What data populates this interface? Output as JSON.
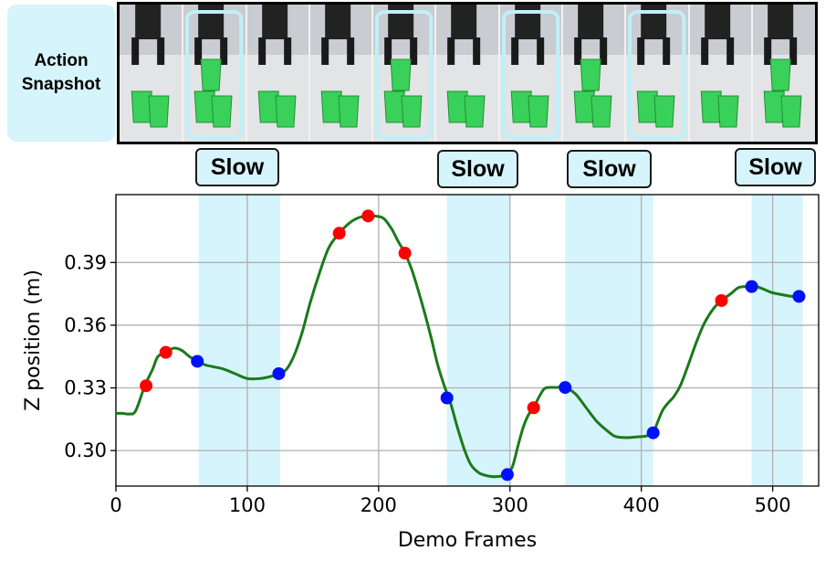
{
  "snapshot_panel": {
    "label_line1": "Action",
    "label_line2": "Snapshot",
    "frame_count": 11,
    "highlighted_frames": [
      1,
      4,
      6,
      8
    ],
    "images": "robot gripper stacking green cups"
  },
  "slow_labels": [
    "Slow",
    "Slow",
    "Slow",
    "Slow"
  ],
  "colors": {
    "line": "#1a7a1a",
    "red_marker": "#ff0000",
    "blue_marker": "#0010ff",
    "slow_band": "#d6f4fb",
    "highlight_frame": "#bff0f8",
    "grid": "#b0b0b0"
  },
  "chart_data": {
    "type": "line",
    "xlabel": "Demo Frames",
    "ylabel": "Z position (m)",
    "xlim": [
      0,
      535
    ],
    "ylim": [
      0.283,
      0.4225
    ],
    "xticks": [
      0,
      100,
      200,
      300,
      400,
      500
    ],
    "xtick_labels": [
      "0",
      "100",
      "200",
      "300",
      "400",
      "500"
    ],
    "yticks": [
      0.3,
      0.33,
      0.36,
      0.39
    ],
    "ytick_labels": [
      "0.30",
      "0.33",
      "0.36",
      "0.39"
    ],
    "grid": true,
    "slow_regions": [
      [
        63,
        125
      ],
      [
        252,
        300
      ],
      [
        342,
        409
      ],
      [
        484,
        523
      ]
    ],
    "series": [
      {
        "x": [
          0,
          5,
          10,
          15,
          22,
          28,
          32,
          38,
          44,
          50,
          56,
          62,
          68,
          75,
          82,
          90,
          100,
          110,
          118,
          124,
          130,
          136,
          142,
          148,
          155,
          162,
          170,
          178,
          185,
          192,
          198,
          204,
          210,
          215,
          220,
          225,
          230,
          235,
          240,
          245,
          250,
          255,
          260,
          265,
          270,
          276,
          282,
          288,
          294,
          298,
          302,
          306,
          310,
          314,
          318,
          322,
          326,
          330,
          335,
          342,
          350,
          358,
          366,
          374,
          380,
          388,
          396,
          404,
          409,
          412,
          416,
          420,
          425,
          430,
          436,
          442,
          448,
          455,
          461,
          468,
          474,
          480,
          486,
          492,
          500,
          508,
          515,
          523
        ],
        "y": [
          0.3178,
          0.3178,
          0.3175,
          0.319,
          0.331,
          0.339,
          0.345,
          0.347,
          0.349,
          0.348,
          0.345,
          0.3427,
          0.341,
          0.34,
          0.339,
          0.337,
          0.3345,
          0.3345,
          0.3355,
          0.3368,
          0.339,
          0.346,
          0.357,
          0.371,
          0.385,
          0.397,
          0.404,
          0.409,
          0.4115,
          0.4123,
          0.4122,
          0.411,
          0.406,
          0.4,
          0.3945,
          0.387,
          0.377,
          0.366,
          0.354,
          0.341,
          0.331,
          0.3222,
          0.311,
          0.301,
          0.2935,
          0.2895,
          0.288,
          0.2875,
          0.2878,
          0.2885,
          0.2925,
          0.302,
          0.311,
          0.317,
          0.3205,
          0.3255,
          0.3295,
          0.3302,
          0.3302,
          0.3302,
          0.327,
          0.3205,
          0.314,
          0.3095,
          0.3068,
          0.3062,
          0.3065,
          0.307,
          0.3085,
          0.313,
          0.319,
          0.3225,
          0.326,
          0.3315,
          0.3415,
          0.352,
          0.361,
          0.368,
          0.3718,
          0.375,
          0.378,
          0.3785,
          0.3788,
          0.3775,
          0.3755,
          0.3745,
          0.3738,
          0.3738
        ]
      }
    ],
    "red_points": [
      {
        "x": 23,
        "y": 0.331
      },
      {
        "x": 38,
        "y": 0.347
      },
      {
        "x": 170,
        "y": 0.404
      },
      {
        "x": 192,
        "y": 0.4123
      },
      {
        "x": 220,
        "y": 0.3945
      },
      {
        "x": 318,
        "y": 0.3205
      },
      {
        "x": 461,
        "y": 0.3718
      }
    ],
    "blue_points": [
      {
        "x": 62,
        "y": 0.3427
      },
      {
        "x": 124,
        "y": 0.3368
      },
      {
        "x": 252,
        "y": 0.3252
      },
      {
        "x": 298,
        "y": 0.2885
      },
      {
        "x": 342,
        "y": 0.3302
      },
      {
        "x": 409,
        "y": 0.3085
      },
      {
        "x": 484,
        "y": 0.3785
      },
      {
        "x": 520,
        "y": 0.3738
      }
    ]
  }
}
